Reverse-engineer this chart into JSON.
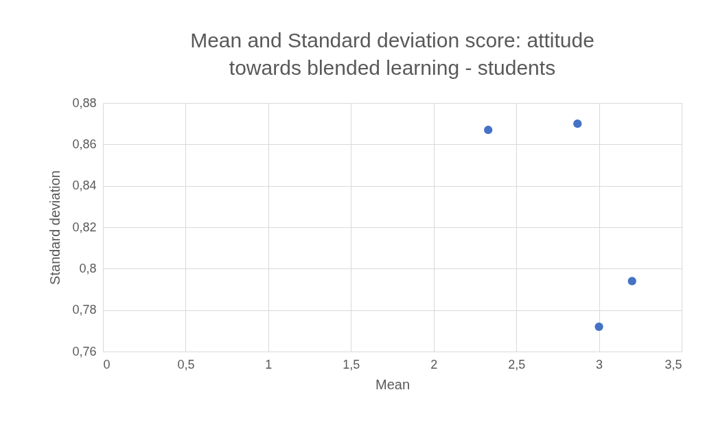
{
  "chart_data": {
    "type": "scatter",
    "title": "Mean and Standard deviation score:  attitude towards blended learning - students",
    "xlabel": "Mean",
    "ylabel": "Standard deviation",
    "x": [
      2.33,
      2.87,
      3.0,
      3.2
    ],
    "series": [
      {
        "color": "#4472c4",
        "values": [
          0.867,
          0.87,
          0.772,
          0.794
        ]
      }
    ],
    "xlim": [
      0,
      3.5
    ],
    "xticks": [
      0,
      {
        "value": 0.5,
        "label": "0,5"
      },
      1,
      {
        "value": 1.5,
        "label": "1,5"
      },
      2,
      {
        "value": 2.5,
        "label": "2,5"
      },
      3,
      {
        "value": 3.5,
        "label": "3,5"
      }
    ],
    "ylim": [
      0.76,
      0.88
    ],
    "yticks": [
      {
        "value": 0.76,
        "label": "0,76"
      },
      {
        "value": 0.78,
        "label": "0,78"
      },
      {
        "value": 0.8,
        "label": "0,8"
      },
      {
        "value": 0.82,
        "label": "0,82"
      },
      {
        "value": 0.84,
        "label": "0,84"
      },
      {
        "value": 0.86,
        "label": "0,86"
      },
      {
        "value": 0.88,
        "label": "0,88"
      }
    ],
    "grid": true,
    "marker": "circle"
  }
}
